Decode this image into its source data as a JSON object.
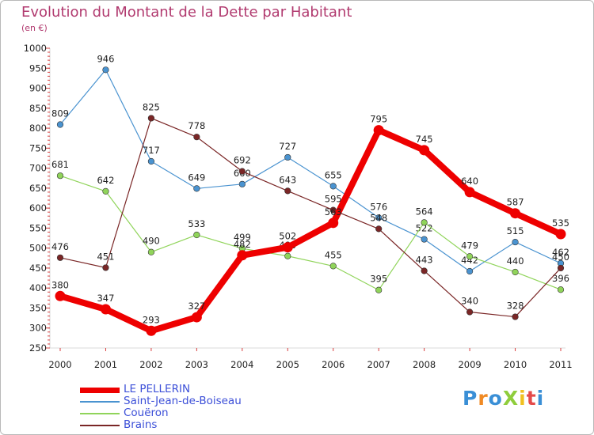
{
  "chart_data": {
    "type": "line",
    "title": "Evolution du Montant de la Dette par Habitant",
    "subtitle": "(en €)",
    "x": [
      "2000",
      "2001",
      "2002",
      "2003",
      "2004",
      "2005",
      "2006",
      "2007",
      "2008",
      "2009",
      "2010",
      "2011"
    ],
    "ylim": [
      250,
      1000
    ],
    "yticks": [
      250,
      300,
      350,
      400,
      450,
      500,
      550,
      600,
      650,
      700,
      750,
      800,
      850,
      900,
      950,
      1000
    ],
    "grid": false,
    "legend_position": "bottom-left",
    "series": [
      {
        "name": "LE PELLERIN",
        "color": "#ee0000",
        "values": [
          380,
          347,
          293,
          327,
          482,
          502,
          563,
          795,
          745,
          640,
          587,
          535
        ]
      },
      {
        "name": "Saint-Jean-de-Boiseau",
        "color": "#4a93d0",
        "values": [
          809,
          946,
          717,
          649,
          660,
          727,
          655,
          576,
          522,
          442,
          515,
          462
        ]
      },
      {
        "name": "Couëron",
        "color": "#90d45a",
        "values": [
          681,
          642,
          490,
          533,
          499,
          480,
          455,
          395,
          564,
          479,
          440,
          396
        ]
      },
      {
        "name": "Brains",
        "color": "#7a2626",
        "values": [
          476,
          451,
          825,
          778,
          692,
          643,
          595,
          548,
          443,
          340,
          328,
          450
        ]
      }
    ]
  },
  "brand": {
    "text": "ProXiti",
    "letters": [
      "P",
      "r",
      "o",
      "X",
      "i",
      "t",
      "i"
    ]
  }
}
